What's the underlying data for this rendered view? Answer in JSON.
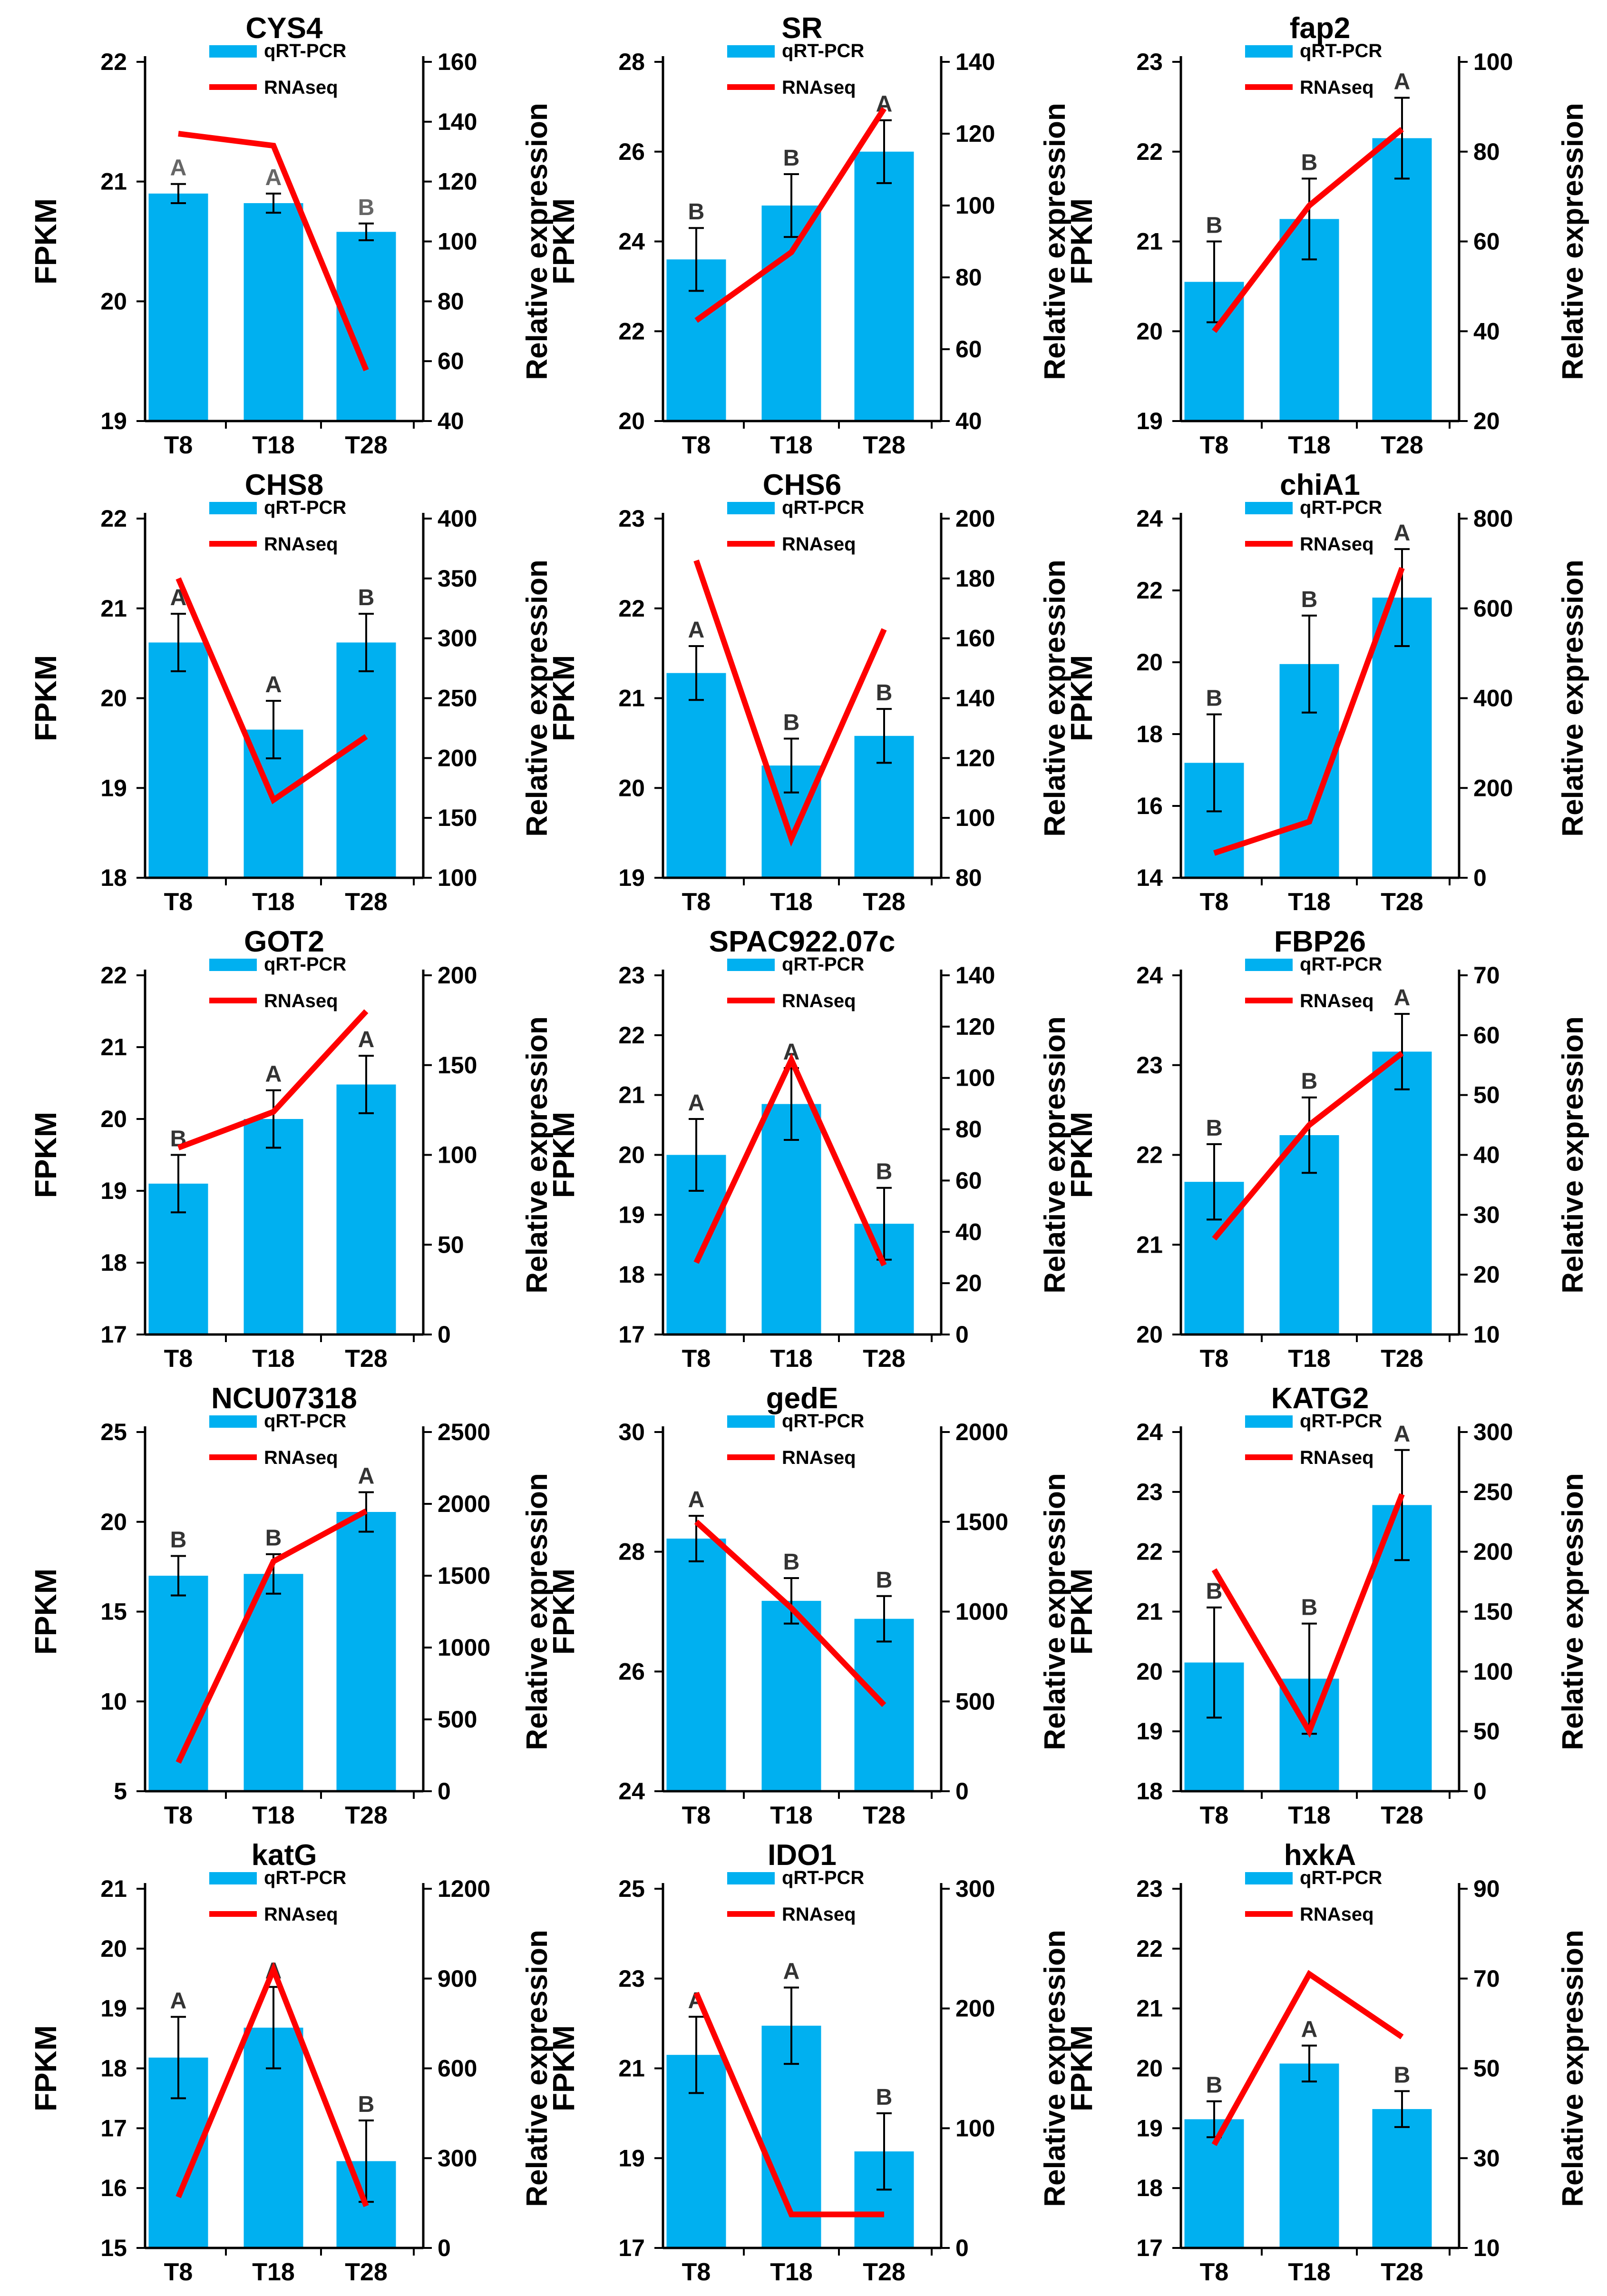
{
  "legend": {
    "bar_label": "qRT-PCR",
    "line_label": "RNAseq"
  },
  "colors": {
    "bar": "#00B0F0",
    "line": "#FF0000",
    "axis": "#000000",
    "letter": "#333333",
    "letter_muted": "#666666"
  },
  "chart_data": [
    {
      "type": "bar",
      "title": "CYS4",
      "categories": [
        "T8",
        "T18",
        "T28"
      ],
      "left_label": "FPKM",
      "right_label": "Relative expression",
      "left_ylim": [
        19,
        22
      ],
      "left_ticks": [
        "19",
        "20",
        "21",
        "22"
      ],
      "right_ylim": [
        40,
        160
      ],
      "right_ticks": [
        "40",
        "60",
        "80",
        "100",
        "120",
        "140",
        "160"
      ],
      "series": [
        {
          "name": "qRT-PCR",
          "axis": "left",
          "values": [
            20.9,
            20.82,
            20.58
          ],
          "errors": [
            0.08,
            0.08,
            0.07
          ]
        },
        {
          "name": "RNAseq",
          "axis": "right",
          "values": [
            136,
            132,
            57
          ]
        }
      ],
      "letters": [
        "A",
        "A",
        "B"
      ],
      "grid": false,
      "legend_position": "top"
    },
    {
      "type": "bar",
      "title": "SR",
      "categories": [
        "T8",
        "T18",
        "T28"
      ],
      "left_label": "FPKM",
      "right_label": "Relative expression",
      "left_ylim": [
        20,
        28
      ],
      "left_ticks": [
        "20",
        "22",
        "24",
        "26",
        "28"
      ],
      "right_ylim": [
        40,
        140
      ],
      "right_ticks": [
        "40",
        "60",
        "80",
        "100",
        "120",
        "140"
      ],
      "series": [
        {
          "name": "qRT-PCR",
          "axis": "left",
          "values": [
            23.6,
            24.8,
            26.0
          ],
          "errors": [
            0.7,
            0.7,
            0.7
          ]
        },
        {
          "name": "RNAseq",
          "axis": "right",
          "values": [
            68,
            87,
            127
          ]
        }
      ],
      "letters": [
        "B",
        "B",
        "A"
      ],
      "grid": false,
      "legend_position": "top"
    },
    {
      "type": "bar",
      "title": "fap2",
      "categories": [
        "T8",
        "T18",
        "T28"
      ],
      "left_label": "FPKM",
      "right_label": "Relative expression",
      "left_ylim": [
        19,
        23
      ],
      "left_ticks": [
        "19",
        "20",
        "21",
        "22",
        "23"
      ],
      "right_ylim": [
        20,
        100
      ],
      "right_ticks": [
        "20",
        "40",
        "60",
        "80",
        "100"
      ],
      "series": [
        {
          "name": "qRT-PCR",
          "axis": "left",
          "values": [
            20.55,
            21.25,
            22.15
          ],
          "errors": [
            0.45,
            0.45,
            0.45
          ]
        },
        {
          "name": "RNAseq",
          "axis": "right",
          "values": [
            40,
            68,
            85
          ]
        }
      ],
      "letters": [
        "B",
        "B",
        "A"
      ],
      "grid": false,
      "legend_position": "top"
    },
    {
      "type": "bar",
      "title": "CHS8",
      "categories": [
        "T8",
        "T18",
        "T28"
      ],
      "left_label": "FPKM",
      "right_label": "Relative expression",
      "left_ylim": [
        18,
        22
      ],
      "left_ticks": [
        "18",
        "19",
        "20",
        "21",
        "22"
      ],
      "right_ylim": [
        100,
        400
      ],
      "right_ticks": [
        "100",
        "150",
        "200",
        "250",
        "300",
        "350",
        "400"
      ],
      "series": [
        {
          "name": "qRT-PCR",
          "axis": "left",
          "values": [
            20.62,
            19.65,
            20.62
          ],
          "errors": [
            0.32,
            0.32,
            0.32
          ]
        },
        {
          "name": "RNAseq",
          "axis": "right",
          "values": [
            350,
            165,
            218
          ]
        }
      ],
      "letters": [
        "A",
        "A",
        "B"
      ],
      "grid": false,
      "legend_position": "top"
    },
    {
      "type": "bar",
      "title": "CHS6",
      "categories": [
        "T8",
        "T18",
        "T28"
      ],
      "left_label": "FPKM",
      "right_label": "Relative expression",
      "left_ylim": [
        19,
        23
      ],
      "left_ticks": [
        "19",
        "20",
        "21",
        "22",
        "23"
      ],
      "right_ylim": [
        80,
        200
      ],
      "right_ticks": [
        "80",
        "100",
        "120",
        "140",
        "160",
        "180",
        "200"
      ],
      "series": [
        {
          "name": "qRT-PCR",
          "axis": "left",
          "values": [
            21.28,
            20.25,
            20.58
          ],
          "errors": [
            0.3,
            0.3,
            0.3
          ]
        },
        {
          "name": "RNAseq",
          "axis": "right",
          "values": [
            186,
            93,
            163
          ]
        }
      ],
      "letters": [
        "A",
        "B",
        "B"
      ],
      "grid": false,
      "legend_position": "top"
    },
    {
      "type": "bar",
      "title": "chiA1",
      "categories": [
        "T8",
        "T18",
        "T28"
      ],
      "left_label": "FPKM",
      "right_label": "Relative expression",
      "left_ylim": [
        14,
        24
      ],
      "left_ticks": [
        "14",
        "16",
        "18",
        "20",
        "22",
        "24"
      ],
      "right_ylim": [
        0,
        800
      ],
      "right_ticks": [
        "0",
        "200",
        "400",
        "600",
        "800"
      ],
      "series": [
        {
          "name": "qRT-PCR",
          "axis": "left",
          "values": [
            17.2,
            19.95,
            21.8
          ],
          "errors": [
            1.35,
            1.35,
            1.35
          ]
        },
        {
          "name": "RNAseq",
          "axis": "right",
          "values": [
            55,
            125,
            690
          ]
        }
      ],
      "letters": [
        "B",
        "B",
        "A"
      ],
      "grid": false,
      "legend_position": "top"
    },
    {
      "type": "bar",
      "title": "GOT2",
      "categories": [
        "T8",
        "T18",
        "T28"
      ],
      "left_label": "FPKM",
      "right_label": "Relative expression",
      "left_ylim": [
        17,
        22
      ],
      "left_ticks": [
        "17",
        "18",
        "19",
        "20",
        "21",
        "22"
      ],
      "right_ylim": [
        0,
        200
      ],
      "right_ticks": [
        "0",
        "50",
        "100",
        "150",
        "200"
      ],
      "series": [
        {
          "name": "qRT-PCR",
          "axis": "left",
          "values": [
            19.1,
            20.0,
            20.48
          ],
          "errors": [
            0.4,
            0.4,
            0.4
          ]
        },
        {
          "name": "RNAseq",
          "axis": "right",
          "values": [
            104,
            124,
            180
          ]
        }
      ],
      "letters": [
        "B",
        "A",
        "A"
      ],
      "grid": false,
      "legend_position": "top"
    },
    {
      "type": "bar",
      "title": "SPAC922.07c",
      "categories": [
        "T8",
        "T18",
        "T28"
      ],
      "left_label": "FPKM",
      "right_label": "Relative expression",
      "left_ylim": [
        17,
        23
      ],
      "left_ticks": [
        "17",
        "18",
        "19",
        "20",
        "21",
        "22",
        "23"
      ],
      "right_ylim": [
        0,
        140
      ],
      "right_ticks": [
        "0",
        "20",
        "40",
        "60",
        "80",
        "100",
        "120",
        "140"
      ],
      "series": [
        {
          "name": "qRT-PCR",
          "axis": "left",
          "values": [
            20.0,
            20.85,
            18.85
          ],
          "errors": [
            0.6,
            0.6,
            0.6
          ]
        },
        {
          "name": "RNAseq",
          "axis": "right",
          "values": [
            28,
            107,
            27
          ]
        }
      ],
      "letters": [
        "A",
        "A",
        "B"
      ],
      "grid": false,
      "legend_position": "top"
    },
    {
      "type": "bar",
      "title": "FBP26",
      "categories": [
        "T8",
        "T18",
        "T28"
      ],
      "left_label": "FPKM",
      "right_label": "Relative expression",
      "left_ylim": [
        20,
        24
      ],
      "left_ticks": [
        "20",
        "21",
        "22",
        "23",
        "24"
      ],
      "right_ylim": [
        10,
        70
      ],
      "right_ticks": [
        "10",
        "20",
        "30",
        "40",
        "50",
        "60",
        "70"
      ],
      "series": [
        {
          "name": "qRT-PCR",
          "axis": "left",
          "values": [
            21.7,
            22.22,
            23.15
          ],
          "errors": [
            0.42,
            0.42,
            0.42
          ]
        },
        {
          "name": "RNAseq",
          "axis": "right",
          "values": [
            26,
            45,
            57
          ]
        }
      ],
      "letters": [
        "B",
        "B",
        "A"
      ],
      "grid": false,
      "legend_position": "top"
    },
    {
      "type": "bar",
      "title": "NCU07318",
      "categories": [
        "T8",
        "T18",
        "T28"
      ],
      "left_label": "FPKM",
      "right_label": "Relative expression",
      "left_ylim": [
        5,
        25
      ],
      "left_ticks": [
        "5",
        "10",
        "15",
        "20",
        "25"
      ],
      "right_ylim": [
        0,
        2500
      ],
      "right_ticks": [
        "0",
        "500",
        "1000",
        "1500",
        "2000",
        "2500"
      ],
      "series": [
        {
          "name": "qRT-PCR",
          "axis": "left",
          "values": [
            17.0,
            17.1,
            20.55
          ],
          "errors": [
            1.1,
            1.1,
            1.1
          ]
        },
        {
          "name": "RNAseq",
          "axis": "right",
          "values": [
            200,
            1600,
            1950
          ]
        }
      ],
      "letters": [
        "B",
        "B",
        "A"
      ],
      "grid": false,
      "legend_position": "top"
    },
    {
      "type": "bar",
      "title": "gedE",
      "categories": [
        "T8",
        "T18",
        "T28"
      ],
      "left_label": "FPKM",
      "right_label": "Relative expression",
      "left_ylim": [
        24,
        30
      ],
      "left_ticks": [
        "24",
        "26",
        "28",
        "30"
      ],
      "right_ylim": [
        0,
        2000
      ],
      "right_ticks": [
        "0",
        "500",
        "1000",
        "1500",
        "2000"
      ],
      "series": [
        {
          "name": "qRT-PCR",
          "axis": "left",
          "values": [
            28.22,
            27.18,
            26.88
          ],
          "errors": [
            0.38,
            0.38,
            0.38
          ]
        },
        {
          "name": "RNAseq",
          "axis": "right",
          "values": [
            1500,
            1020,
            480
          ]
        }
      ],
      "letters": [
        "A",
        "B",
        "B"
      ],
      "grid": false,
      "legend_position": "top"
    },
    {
      "type": "bar",
      "title": "KATG2",
      "categories": [
        "T8",
        "T18",
        "T28"
      ],
      "left_label": "FPKM",
      "right_label": "Relative expression",
      "left_ylim": [
        18,
        24
      ],
      "left_ticks": [
        "18",
        "19",
        "20",
        "21",
        "22",
        "23",
        "24"
      ],
      "right_ylim": [
        0,
        300
      ],
      "right_ticks": [
        "0",
        "50",
        "100",
        "150",
        "200",
        "250",
        "300"
      ],
      "series": [
        {
          "name": "qRT-PCR",
          "axis": "left",
          "values": [
            20.15,
            19.88,
            22.78
          ],
          "errors": [
            0.92,
            0.92,
            0.92
          ]
        },
        {
          "name": "RNAseq",
          "axis": "right",
          "values": [
            185,
            50,
            248
          ]
        }
      ],
      "letters": [
        "B",
        "B",
        "A"
      ],
      "grid": false,
      "legend_position": "top"
    },
    {
      "type": "bar",
      "title": "katG",
      "categories": [
        "T8",
        "T18",
        "T28"
      ],
      "left_label": "FPKM",
      "right_label": "Relative expression",
      "left_ylim": [
        15,
        21
      ],
      "left_ticks": [
        "15",
        "16",
        "17",
        "18",
        "19",
        "20",
        "21"
      ],
      "right_ylim": [
        0,
        1200
      ],
      "right_ticks": [
        "0",
        "300",
        "600",
        "900",
        "1200"
      ],
      "series": [
        {
          "name": "qRT-PCR",
          "axis": "left",
          "values": [
            18.18,
            18.68,
            16.45
          ],
          "errors": [
            0.68,
            0.68,
            0.68
          ]
        },
        {
          "name": "RNAseq",
          "axis": "right",
          "values": [
            170,
            930,
            140
          ]
        }
      ],
      "letters": [
        "A",
        "A",
        "B"
      ],
      "grid": false,
      "legend_position": "top"
    },
    {
      "type": "bar",
      "title": "IDO1",
      "categories": [
        "T8",
        "T18",
        "T28"
      ],
      "left_label": "FPKM",
      "right_label": "Relative expression",
      "left_ylim": [
        17,
        25
      ],
      "left_ticks": [
        "17",
        "19",
        "21",
        "23",
        "25"
      ],
      "right_ylim": [
        0,
        300
      ],
      "right_ticks": [
        "0",
        "100",
        "200",
        "300"
      ],
      "series": [
        {
          "name": "qRT-PCR",
          "axis": "left",
          "values": [
            21.3,
            21.95,
            19.15
          ],
          "errors": [
            0.85,
            0.85,
            0.85
          ]
        },
        {
          "name": "RNAseq",
          "axis": "right",
          "values": [
            213,
            28,
            28
          ]
        }
      ],
      "letters": [
        "A",
        "A",
        "B"
      ],
      "grid": false,
      "legend_position": "top"
    },
    {
      "type": "bar",
      "title": "hxkA",
      "categories": [
        "T8",
        "T18",
        "T28"
      ],
      "left_label": "FPKM",
      "right_label": "Relative expression",
      "left_ylim": [
        17,
        23
      ],
      "left_ticks": [
        "17",
        "18",
        "19",
        "20",
        "21",
        "22",
        "23"
      ],
      "right_ylim": [
        10,
        90
      ],
      "right_ticks": [
        "10",
        "30",
        "50",
        "70",
        "90"
      ],
      "series": [
        {
          "name": "qRT-PCR",
          "axis": "left",
          "values": [
            19.15,
            20.08,
            19.32
          ],
          "errors": [
            0.3,
            0.3,
            0.3
          ]
        },
        {
          "name": "RNAseq",
          "axis": "right",
          "values": [
            33,
            71,
            57
          ]
        }
      ],
      "letters": [
        "B",
        "A",
        "B"
      ],
      "grid": false,
      "legend_position": "top"
    }
  ]
}
